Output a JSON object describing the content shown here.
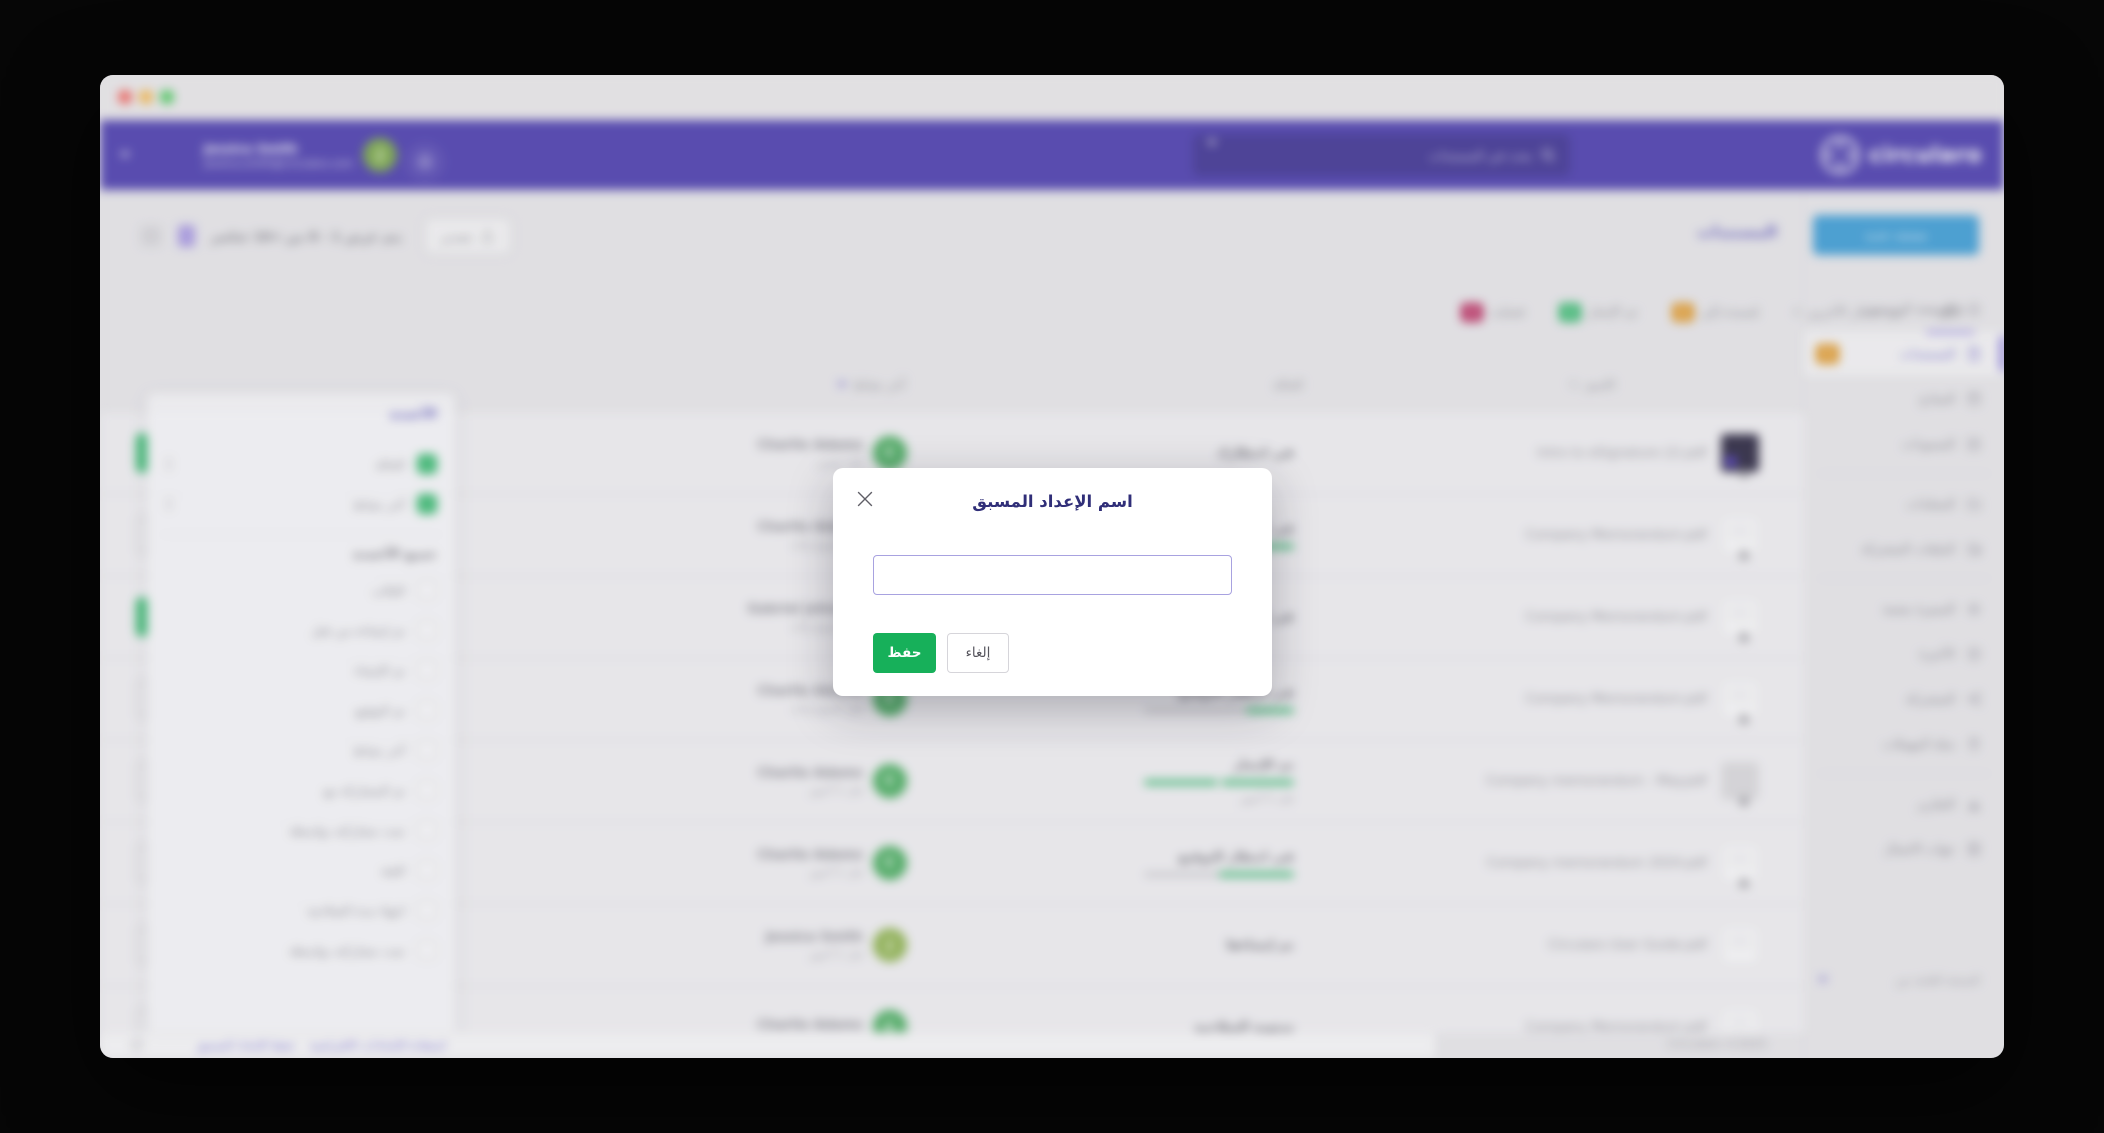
{
  "header": {
    "logo_text": "circularo",
    "search_placeholder": "بحث في المستندات",
    "user_name": "Jessica Smith",
    "user_email": "jessica.smith@circularo.com",
    "user_initial": "J",
    "user_avatar_color": "#6ea236"
  },
  "sidebar": {
    "new_document_button": "مستند جديد",
    "items": [
      {
        "label": "الصفحة الرئيسية"
      },
      {
        "label": "المستندات",
        "badge": "1",
        "badge_color": "#de8d0f"
      },
      {
        "label": "النماذج"
      },
      {
        "label": "المسودات"
      },
      {
        "label": "المجلدات"
      },
      {
        "label": "الملفات المشتركة"
      },
      {
        "label": "المميزة بنجمة"
      },
      {
        "label": "الأخيرة"
      },
      {
        "label": "المشتركة"
      },
      {
        "label": "سلة المهملات"
      },
      {
        "label": "التقارير"
      },
      {
        "label": "جهات الاتصال"
      }
    ],
    "version_label": "النسخة العامة من"
  },
  "page": {
    "title": "المستندات",
    "tabs": [
      {
        "label": "الكل"
      },
      {
        "label": "في انتظار الآخرين",
        "count": "4"
      },
      {
        "label": "مُسندة إلي",
        "badge": "1",
        "badge_color": "#de8d0f"
      },
      {
        "label": "تم الإنجاز",
        "badge": "1",
        "badge_color": "#1db25d"
      },
      {
        "label": "فشلت",
        "badge": "1",
        "badge_color": "#b3104b"
      }
    ],
    "toolbar": {
      "export_label": "تصدير",
      "items_shown_text": "يتم عرض 1 - 8 من >10 عناصر"
    },
    "table": {
      "columns": {
        "name": "الاسم",
        "status": "الحالة",
        "activity": "آخر نشاط"
      },
      "rows": [
        {
          "name": "Intro to eSignature (2).pdf",
          "status": "في انتظارك",
          "owner": "Charlie Adams",
          "time": "قبل يومين",
          "avatar_initial": "C",
          "avatar_color": "#34a54d"
        },
        {
          "name": "Company Memorandum.pdf",
          "status": "في انتظار التوقيع",
          "progress_width": "100%",
          "owner": "Charlie Adams",
          "time": "قبل أسبوع واحد",
          "avatar_initial": "C",
          "avatar_color": "#34a54d"
        },
        {
          "name": "Company Memorandum.pdf",
          "status": "في انتظار التوقيع",
          "owner": "Gabriel Johnson",
          "time": "قبل أسبوع واحد",
          "avatar_initial": "G",
          "avatar_color": "#34a54d"
        },
        {
          "name": "Company Memorandum.pdf",
          "status": "في انتظار التوقيع",
          "progress_width": "32%",
          "owner": "Charlie Adams",
          "time": "قبل أسبوع واحد",
          "avatar_initial": "C",
          "avatar_color": "#34a54d"
        },
        {
          "name": "Company memorandum - May.pdf",
          "status": "تم الإنجاز",
          "progress_width": "100%",
          "status_time": "قبل 5 أشهر",
          "owner": "Charlie Adams",
          "time": "قبل 5 أشهر",
          "avatar_initial": "C",
          "avatar_color": "#34a54d"
        },
        {
          "name": "Company memorandum 2024.pdf",
          "status": "في انتظار التوقيع",
          "progress_width": "50%",
          "owner": "Charlie Adams",
          "time": "قبل 5 أشهر",
          "avatar_initial": "C",
          "avatar_color": "#34a54d"
        },
        {
          "name": "Circularo User Guide.pdf",
          "status": "تم إنشاءها",
          "owner": "Jessica Smith",
          "time": "قبل 5 أشهر",
          "avatar_initial": "J",
          "avatar_color": "#85ae3e"
        },
        {
          "name": "Company Memorandum.pdf",
          "status": "منتهية الصلاحية",
          "owner": "Charlie Adams",
          "time": "",
          "avatar_initial": "C",
          "avatar_color": "#34a54d"
        }
      ]
    }
  },
  "columns_panel": {
    "title": "الأعمدة",
    "checked": [
      "الحالة",
      "آخر نشاط"
    ],
    "all_columns_label": "جميع الأعمدة",
    "unchecked": [
      "القالب",
      "تم إنشاءه من قبل",
      "تم الإنشاء",
      "تم التوقيع",
      "آخر نشاط",
      "تم المشاركة مع",
      "تمت مشاركته بواسطة",
      "الفئة",
      "انتهاء مدة الصلاحية",
      "تمت مشاركته بواسطة"
    ]
  },
  "footer": {
    "restore_defaults_link": "استعادة الإعدادات الافتراضية",
    "save_preset_link": "حفظ الإعداد المسبق",
    "copyright": "Circularo ©2025"
  },
  "modal": {
    "title": "اسم الإعداد المسبق",
    "input_value": "",
    "save_button": "حفظ",
    "cancel_button": "إلغاء"
  }
}
